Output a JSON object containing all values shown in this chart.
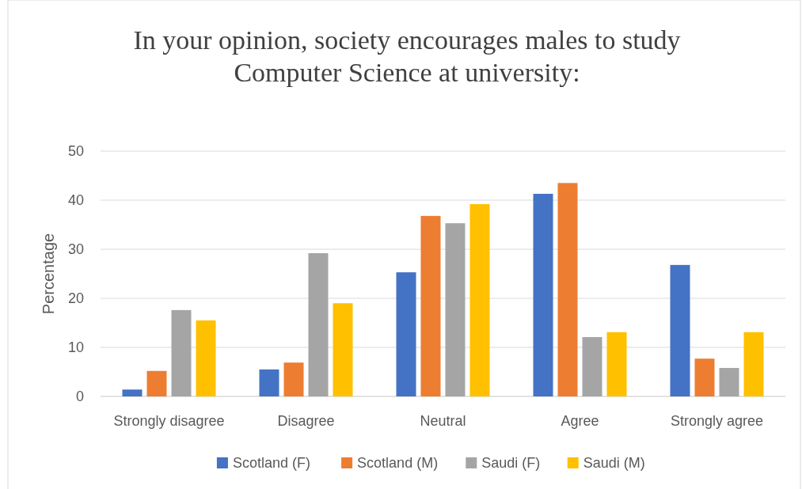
{
  "chart_data": {
    "type": "bar",
    "title": "In your opinion, society encourages males to study\nComputer Science at university:",
    "ylabel": "Percentage",
    "categories": [
      "Strongly disagree",
      "Disagree",
      "Neutral",
      "Agree",
      "Strongly agree"
    ],
    "series": [
      {
        "name": "Scotland (F)",
        "color": "#4472c4",
        "values": [
          1.4,
          5.5,
          25.3,
          41.3,
          26.8
        ]
      },
      {
        "name": "Scotland (M)",
        "color": "#ed7d31",
        "values": [
          5.2,
          6.9,
          36.8,
          43.5,
          7.7
        ]
      },
      {
        "name": "Saudi (F)",
        "color": "#a5a5a5",
        "values": [
          17.6,
          29.2,
          35.3,
          12.1,
          5.8
        ]
      },
      {
        "name": "Saudi (M)",
        "color": "#ffc000",
        "values": [
          15.5,
          19.0,
          39.2,
          13.1,
          13.1
        ]
      }
    ],
    "ylim": [
      0,
      50
    ],
    "yticks": [
      0,
      10,
      20,
      30,
      40,
      50
    ],
    "grid": "y",
    "legend": "bottom"
  }
}
